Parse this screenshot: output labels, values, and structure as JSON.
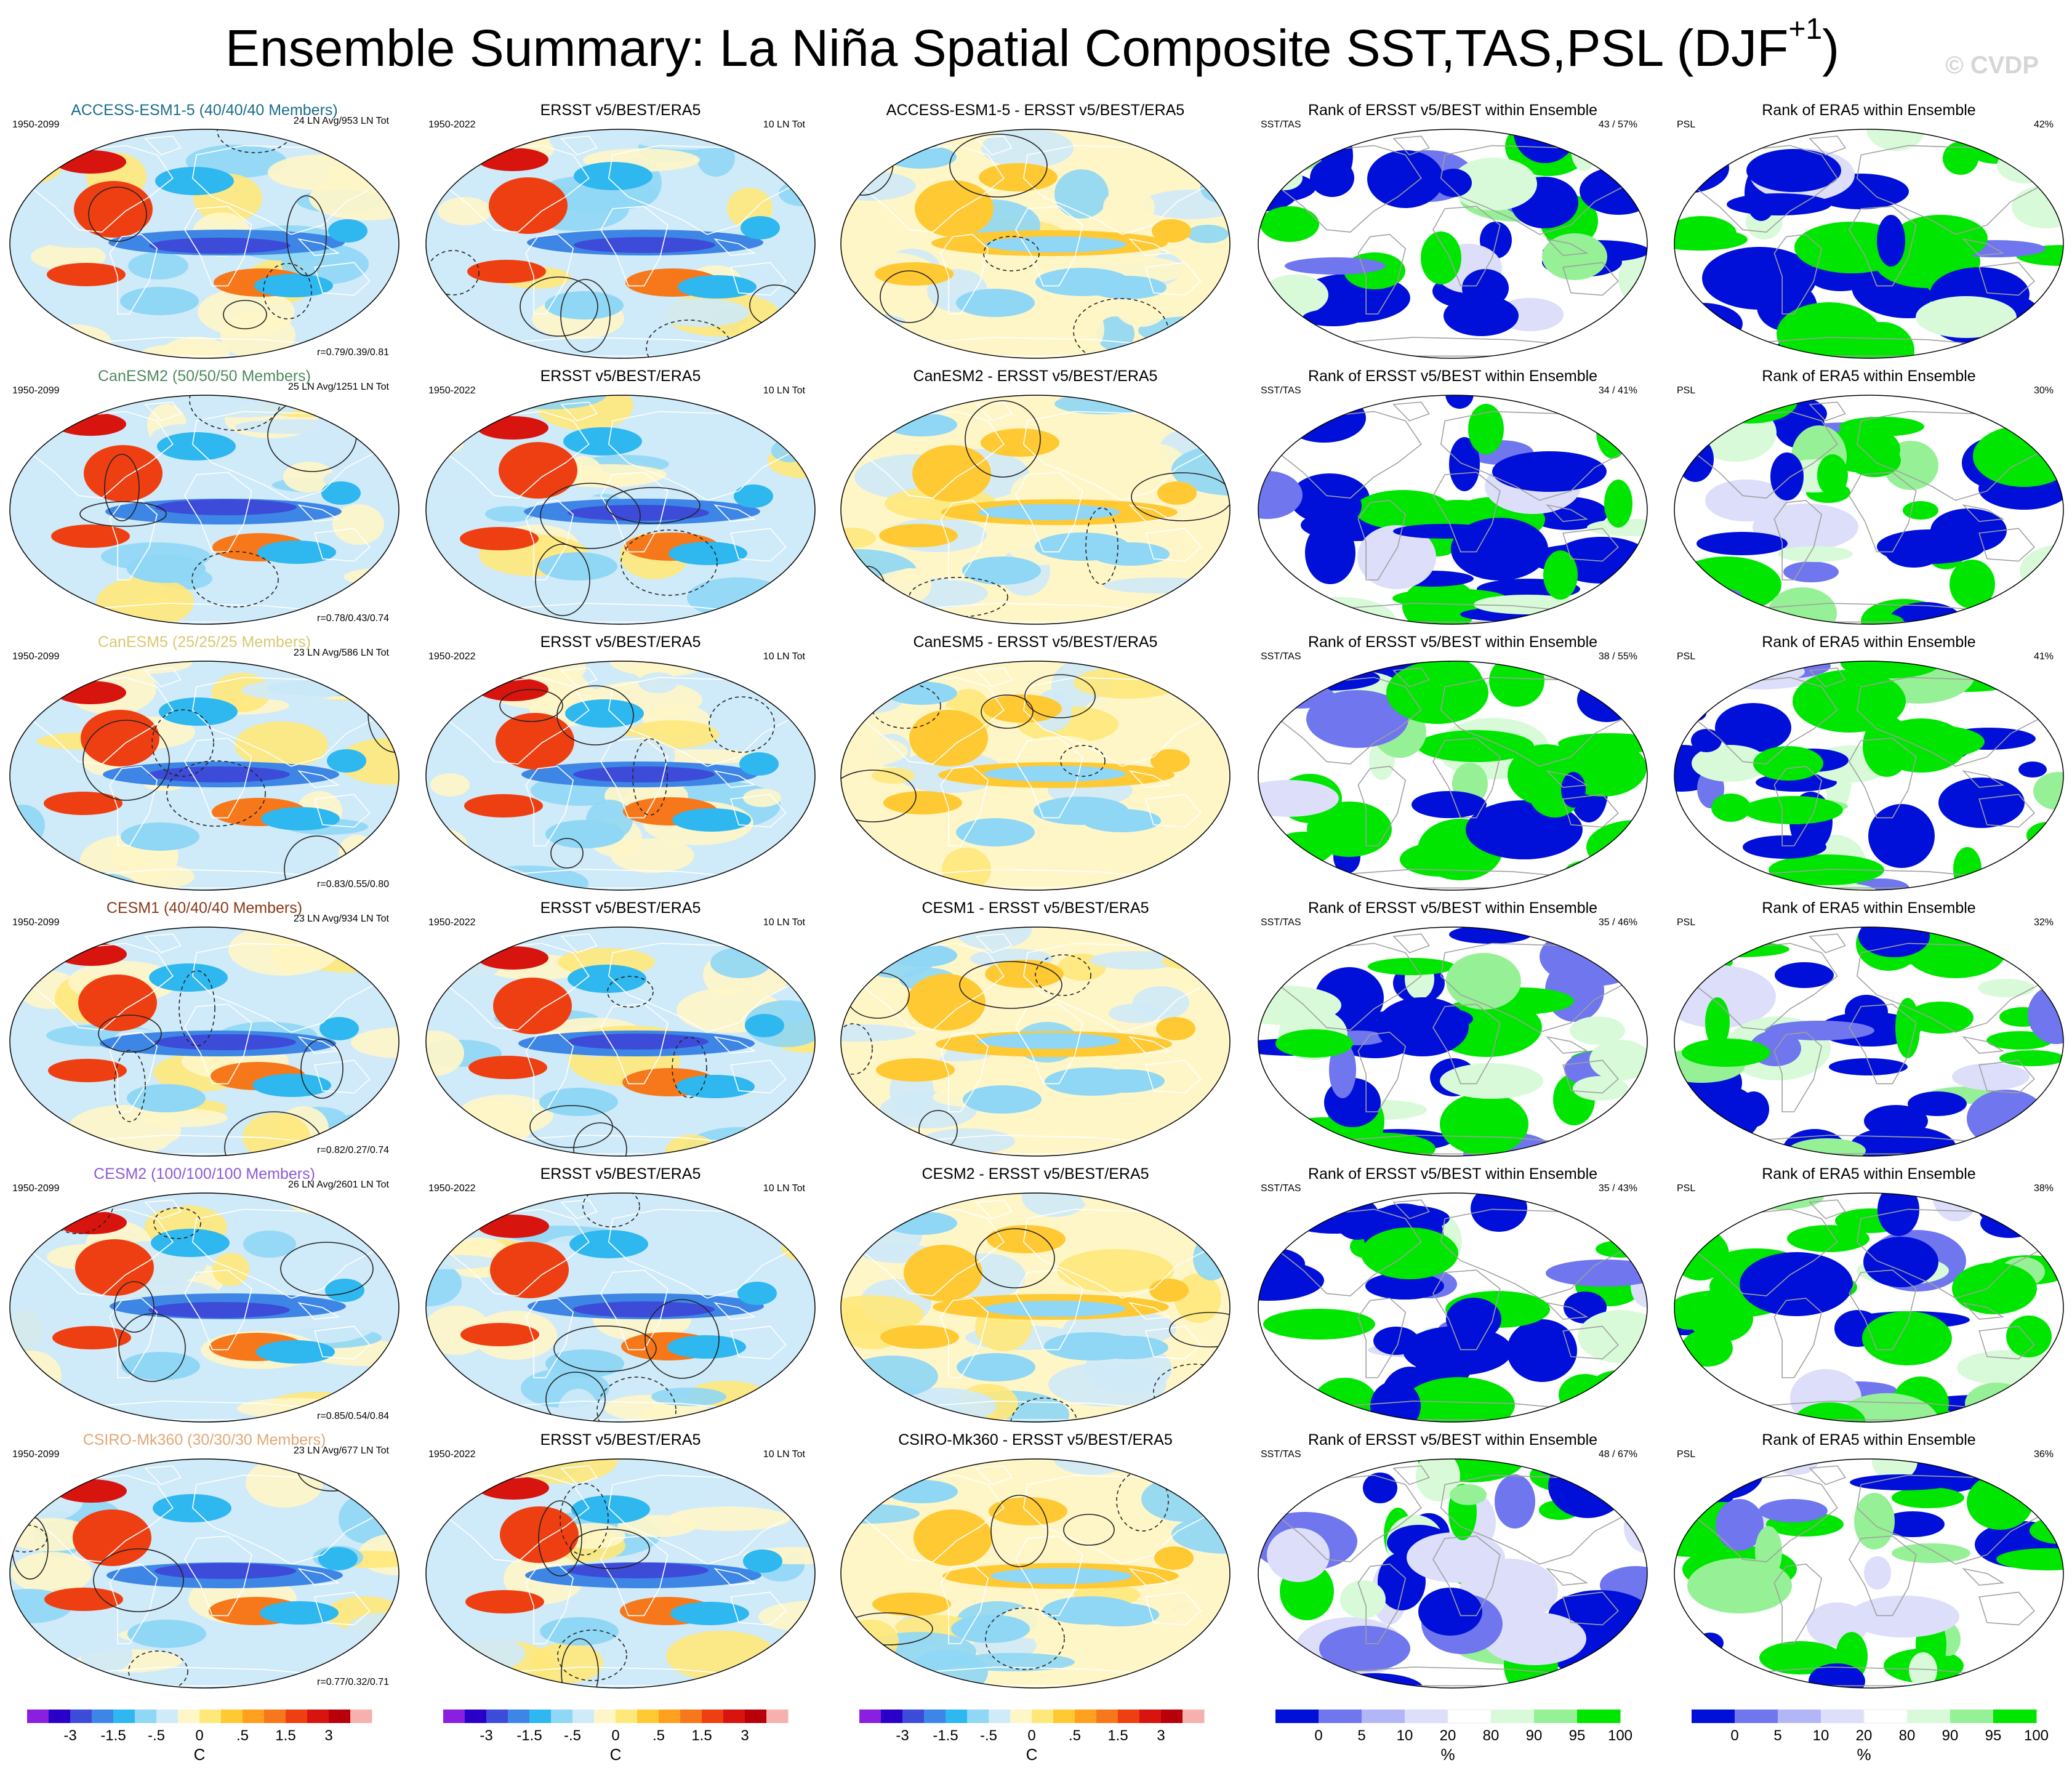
{
  "title": {
    "main": "Ensemble Summary: La Niña Spatial Composite SST,TAS,PSL (DJF",
    "sup": "+1",
    "close": ")"
  },
  "watermark": "© CVDP",
  "colors": {
    "diverging": [
      "#8a1fe0",
      "#2a00c8",
      "#3c4cd8",
      "#3e86e6",
      "#2fb7ef",
      "#8fd7f5",
      "#cfeaf8",
      "#fff6c8",
      "#ffe87a",
      "#ffc934",
      "#ffa020",
      "#f7781a",
      "#ee3f12",
      "#d8140e",
      "#b8000a",
      "#f6b0ae"
    ],
    "rank": [
      "#0010d8",
      "#6f76ee",
      "#b2b6f6",
      "#dcdefa",
      "#ffffff",
      "#d8fad8",
      "#96f096",
      "#00e600"
    ],
    "coast": "#ffffff",
    "coast_rank": "#a0a0a0"
  },
  "chart_data": {
    "type": "heatmap",
    "description_axes": "Global maps, Robinson-like projection",
    "rows": [
      {
        "model": "ACCESS-ESM1-5 (40/40/40 Members)",
        "model_short": "ACCESS-ESM1-5",
        "model_color": "#1a6d8a",
        "period": "1950-2099",
        "events": "24 LN Avg/953 LN Tot",
        "corr": "r=0.79/0.39/0.81",
        "obs_title": "ERSST v5/BEST/ERA5",
        "obs_period": "1950-2022",
        "obs_events": "10 LN Tot",
        "diff_title": "ACCESS-ESM1-5 - ERSST v5/BEST/ERA5",
        "rank1_title": "Rank of ERSST v5/BEST within Ensemble",
        "rank1_label": "SST/TAS",
        "rank1_pct": "43 /  57%",
        "rank2_title": "Rank of ERA5 within Ensemble",
        "rank2_label": "PSL",
        "rank2_pct": "42%"
      },
      {
        "model": "CanESM2 (50/50/50 Members)",
        "model_short": "CanESM2",
        "model_color": "#4f8a5c",
        "period": "1950-2099",
        "events": "25 LN Avg/1251 LN Tot",
        "corr": "r=0.78/0.43/0.74",
        "obs_title": "ERSST v5/BEST/ERA5",
        "obs_period": "1950-2022",
        "obs_events": "10 LN Tot",
        "diff_title": "CanESM2 - ERSST v5/BEST/ERA5",
        "rank1_title": "Rank of ERSST v5/BEST within Ensemble",
        "rank1_label": "SST/TAS",
        "rank1_pct": "34 /  41%",
        "rank2_title": "Rank of ERA5 within Ensemble",
        "rank2_label": "PSL",
        "rank2_pct": "30%"
      },
      {
        "model": "CanESM5 (25/25/25 Members)",
        "model_short": "CanESM5",
        "model_color": "#d9c872",
        "period": "1950-2099",
        "events": "23 LN Avg/586 LN Tot",
        "corr": "r=0.83/0.55/0.80",
        "obs_title": "ERSST v5/BEST/ERA5",
        "obs_period": "1950-2022",
        "obs_events": "10 LN Tot",
        "diff_title": "CanESM5 - ERSST v5/BEST/ERA5",
        "rank1_title": "Rank of ERSST v5/BEST within Ensemble",
        "rank1_label": "SST/TAS",
        "rank1_pct": "38 /  55%",
        "rank2_title": "Rank of ERA5 within Ensemble",
        "rank2_label": "PSL",
        "rank2_pct": "41%"
      },
      {
        "model": "CESM1 (40/40/40 Members)",
        "model_short": "CESM1",
        "model_color": "#8a3a1a",
        "period": "1950-2099",
        "events": "23 LN Avg/934 LN Tot",
        "corr": "r=0.82/0.27/0.74",
        "obs_title": "ERSST v5/BEST/ERA5",
        "obs_period": "1950-2022",
        "obs_events": "10 LN Tot",
        "diff_title": "CESM1 - ERSST v5/BEST/ERA5",
        "rank1_title": "Rank of ERSST v5/BEST within Ensemble",
        "rank1_label": "SST/TAS",
        "rank1_pct": "35 /  46%",
        "rank2_title": "Rank of ERA5 within Ensemble",
        "rank2_label": "PSL",
        "rank2_pct": "32%"
      },
      {
        "model": "CESM2 (100/100/100 Members)",
        "model_short": "CESM2",
        "model_color": "#8e5ad6",
        "period": "1950-2099",
        "events": "26 LN Avg/2601 LN Tot",
        "corr": "r=0.85/0.54/0.84",
        "obs_title": "ERSST v5/BEST/ERA5",
        "obs_period": "1950-2022",
        "obs_events": "10 LN Tot",
        "diff_title": "CESM2 - ERSST v5/BEST/ERA5",
        "rank1_title": "Rank of ERSST v5/BEST within Ensemble",
        "rank1_label": "SST/TAS",
        "rank1_pct": "35 /  43%",
        "rank2_title": "Rank of ERA5 within Ensemble",
        "rank2_label": "PSL",
        "rank2_pct": "38%"
      },
      {
        "model": "CSIRO-Mk360 (30/30/30 Members)",
        "model_short": "CSIRO-Mk360",
        "model_color": "#e0a878",
        "period": "1950-2099",
        "events": "23 LN Avg/677 LN Tot",
        "corr": "r=0.77/0.32/0.71",
        "obs_title": "ERSST v5/BEST/ERA5",
        "obs_period": "1950-2022",
        "obs_events": "10 LN Tot",
        "diff_title": "CSIRO-Mk360 - ERSST v5/BEST/ERA5",
        "rank1_title": "Rank of ERSST v5/BEST within Ensemble",
        "rank1_label": "SST/TAS",
        "rank1_pct": "48 /  67%",
        "rank2_title": "Rank of ERA5 within Ensemble",
        "rank2_label": "PSL",
        "rank2_pct": "36%"
      }
    ],
    "colorbar_temp": {
      "ticks": [
        "-3",
        "-1.5",
        "-.5",
        "0",
        ".5",
        "1.5",
        "3"
      ],
      "units": "C"
    },
    "colorbar_rank": {
      "ticks": [
        "0",
        "5",
        "10",
        "20",
        "80",
        "90",
        "95",
        "100"
      ],
      "units": "%"
    }
  }
}
